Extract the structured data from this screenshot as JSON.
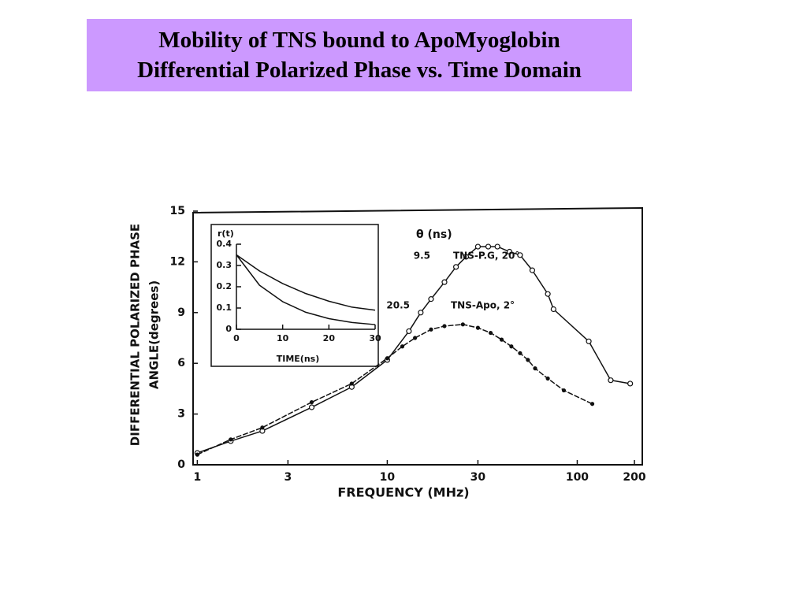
{
  "header": {
    "lines": [
      "Mobility of TNS bound to ApoMyoglobin",
      "Differential Polarized Phase vs. Time Domain"
    ]
  },
  "chart_data": [
    {
      "type": "scatter",
      "xscale": "log",
      "xlabel": "FREQUENCY (MHz)",
      "ylabel": [
        "DIFFERENTIAL POLARIZED PHASE",
        "ANGLE(degrees)"
      ],
      "xlim": [
        0.95,
        220
      ],
      "xticks": [
        1,
        3,
        10,
        30,
        100,
        200
      ],
      "ylim": [
        0,
        15
      ],
      "yticks": [
        0,
        3,
        6,
        9,
        12,
        15
      ],
      "theta_label": "θ (ns)",
      "series": [
        {
          "name": "TNS-P.G, 20°",
          "theta": 9.5,
          "marker": "open",
          "color": "#111111",
          "x": [
            1,
            1.5,
            2.2,
            4,
            6.5,
            10,
            13,
            15,
            17,
            20,
            23,
            26,
            30,
            34,
            38,
            44,
            50,
            58,
            70,
            75,
            115,
            150,
            190
          ],
          "values": [
            0.7,
            1.4,
            2.0,
            3.4,
            4.6,
            6.2,
            7.9,
            9.0,
            9.8,
            10.8,
            11.7,
            12.3,
            12.9,
            12.9,
            12.9,
            12.6,
            12.4,
            11.5,
            10.1,
            9.2,
            7.3,
            5.0,
            4.8
          ]
        },
        {
          "name": "TNS-Apo, 2°",
          "theta": 20.5,
          "marker": "filled",
          "color": "#111111",
          "x": [
            1,
            1.5,
            2.2,
            4,
            6.5,
            10,
            12,
            14,
            17,
            20,
            25,
            30,
            35,
            40,
            45,
            50,
            55,
            60,
            70,
            85,
            120
          ],
          "values": [
            0.6,
            1.5,
            2.2,
            3.7,
            4.8,
            6.3,
            7.0,
            7.5,
            8.0,
            8.2,
            8.3,
            8.1,
            7.8,
            7.4,
            7.0,
            6.6,
            6.2,
            5.7,
            5.1,
            4.4,
            3.6
          ]
        }
      ]
    },
    {
      "type": "line",
      "xlabel": "TIME(ns)",
      "ylabel": "r(t)",
      "xlim": [
        0,
        30
      ],
      "xticks": [
        0,
        10,
        20,
        30
      ],
      "ylim": [
        0,
        0.4
      ],
      "yticks": [
        0,
        0.1,
        0.2,
        0.3,
        0.4
      ],
      "series": [
        {
          "color": "#111111",
          "x": [
            0,
            5,
            10,
            15,
            20,
            25,
            30
          ],
          "values": [
            0.35,
            0.274,
            0.215,
            0.168,
            0.132,
            0.104,
            0.09
          ]
        },
        {
          "color": "#111111",
          "x": [
            0,
            5,
            10,
            15,
            20,
            25,
            30
          ],
          "values": [
            0.35,
            0.207,
            0.13,
            0.08,
            0.05,
            0.032,
            0.022
          ]
        }
      ]
    }
  ]
}
